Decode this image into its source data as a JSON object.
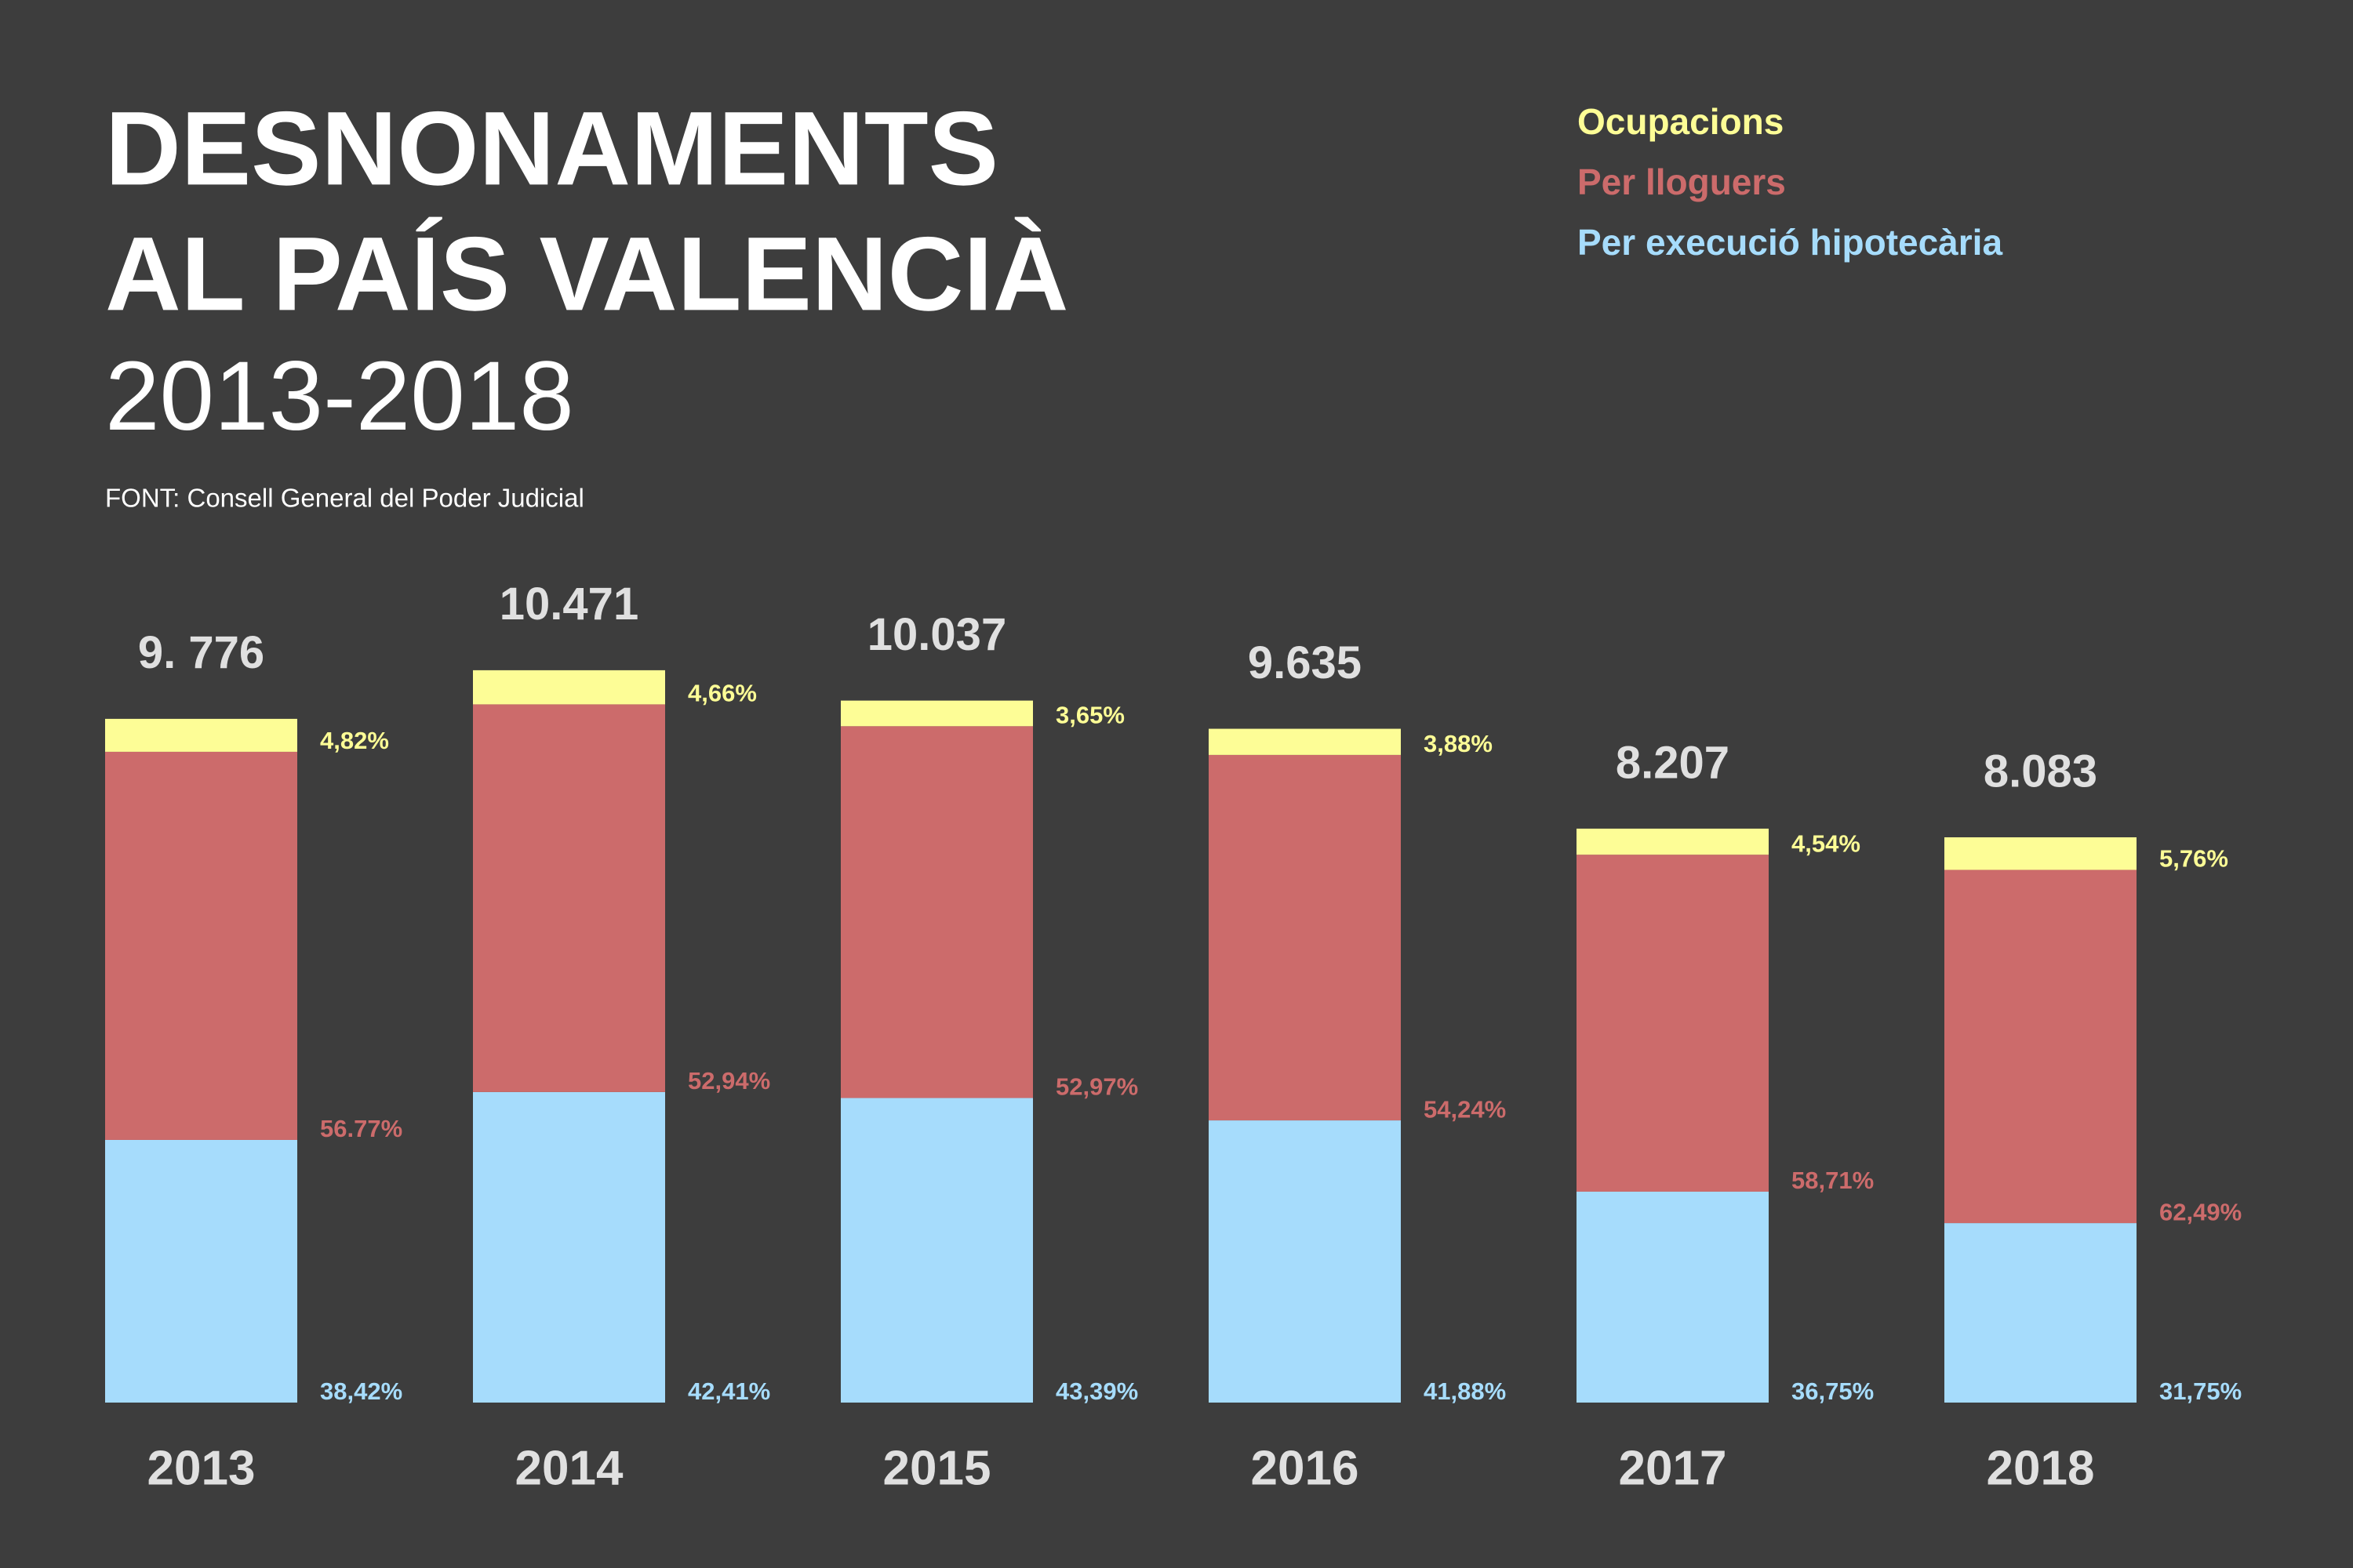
{
  "chart_data": {
    "type": "stacked_bar",
    "title": [
      "DESNONAMENTS",
      "AL PAÍS VALENCIÀ"
    ],
    "subtitle": "2013-2018",
    "source": "FONT: Consell General del Poder Judicial",
    "categories": [
      "2013",
      "2014",
      "2015",
      "2016",
      "2017",
      "2018"
    ],
    "totals": {
      "values": [
        9776,
        10471,
        10037,
        9635,
        8207,
        8083
      ],
      "value_labels": [
        "9. 776",
        "10.471",
        "10.037",
        "9.635",
        "8.207",
        "8.083"
      ]
    },
    "series": [
      {
        "name": "Per execució hipotecària",
        "color": "#a6dcfc",
        "values": [
          38.42,
          42.41,
          43.39,
          41.88,
          36.75,
          31.75
        ],
        "value_labels": [
          "38,42%",
          "42,41%",
          "43,39%",
          "41,88%",
          "36,75%",
          "31,75%"
        ]
      },
      {
        "name": "Per lloguers",
        "color": "#cc6b6b",
        "values": [
          56.77,
          52.94,
          52.97,
          54.24,
          58.71,
          62.49
        ],
        "value_labels": [
          "56.77%",
          "52,94%",
          "52,97%",
          "54,24%",
          "58,71%",
          "62,49%"
        ]
      },
      {
        "name": "Ocupacions",
        "color": "#fdfd96",
        "values": [
          4.82,
          4.66,
          3.65,
          3.88,
          4.54,
          5.76
        ],
        "value_labels": [
          "4,82%",
          "4,66%",
          "3,65%",
          "3,88%",
          "4,54%",
          "5,76%"
        ]
      }
    ]
  }
}
